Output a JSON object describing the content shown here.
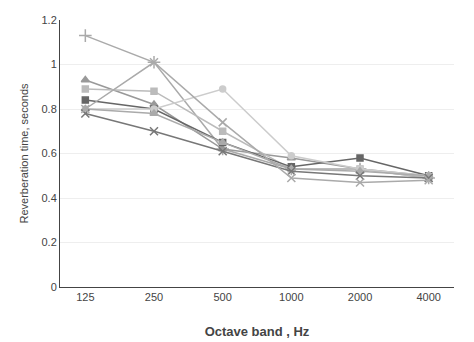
{
  "chart_data": {
    "type": "line",
    "xlabel": "Octave band , Hz",
    "ylabel": "Reverberation time, seconds",
    "categories": [
      "125",
      "250",
      "500",
      "1000",
      "2000",
      "4000"
    ],
    "series": [
      {
        "color": "#aaaaaa",
        "marker": "plus",
        "values": [
          1.13,
          1.01,
          0.62,
          0.53,
          0.53,
          0.49
        ]
      },
      {
        "color": "#999999",
        "marker": "triangle",
        "values": [
          0.93,
          0.82,
          0.62,
          0.58,
          0.53,
          0.5
        ]
      },
      {
        "color": "#bbbbbb",
        "marker": "square",
        "values": [
          0.89,
          0.88,
          0.7,
          0.53,
          0.53,
          0.49
        ]
      },
      {
        "color": "#666666",
        "marker": "square",
        "values": [
          0.84,
          0.8,
          0.65,
          0.54,
          0.58,
          0.5
        ]
      },
      {
        "color": "#cccccc",
        "marker": "circle",
        "values": [
          0.8,
          0.8,
          0.89,
          0.59,
          0.53,
          0.5
        ]
      },
      {
        "color": "#aaaaaa",
        "marker": "triangle",
        "values": [
          0.8,
          0.78,
          0.65,
          0.53,
          0.52,
          0.5
        ]
      },
      {
        "color": "#777777",
        "marker": "x",
        "values": [
          0.78,
          0.7,
          0.61,
          0.52,
          0.5,
          0.49
        ]
      },
      {
        "color": "#aaaaaa",
        "marker": "x",
        "values": [
          0.8,
          1.01,
          0.74,
          0.49,
          0.47,
          0.48
        ]
      }
    ],
    "ylim": [
      0,
      1.2
    ],
    "yticks": [
      0,
      0.2,
      0.4,
      0.6,
      0.8,
      1,
      1.2
    ],
    "grid": true
  }
}
